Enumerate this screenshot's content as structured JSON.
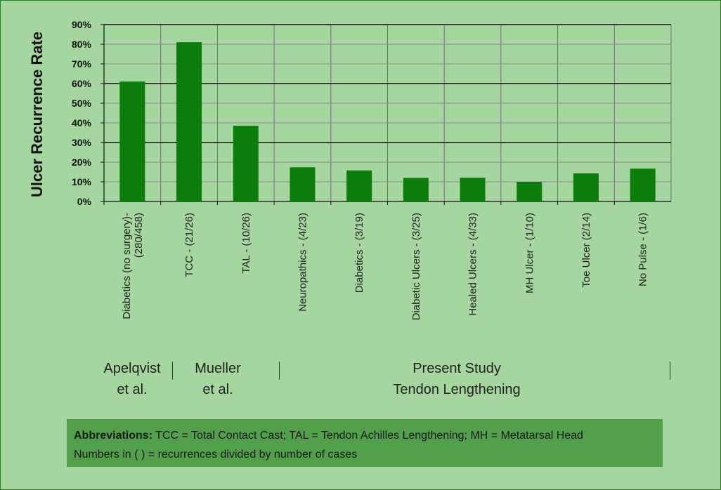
{
  "chart_data": {
    "type": "bar",
    "ylabel": "Ulcer Recurrence Rate",
    "ylim": [
      0,
      90
    ],
    "yticks": [
      "0%",
      "10%",
      "20%",
      "30%",
      "40%",
      "50%",
      "60%",
      "70%",
      "80%",
      "90%"
    ],
    "categories": [
      [
        "Diabetics (no surgery)-",
        "(280/458)"
      ],
      [
        "TCC - (21/26)"
      ],
      [
        "TAL - (10/26)"
      ],
      [
        "Neuropathics - (4/23)"
      ],
      [
        "Diabetics - (3/19)"
      ],
      [
        "Diabetic Ulcers - (3/25)"
      ],
      [
        "Healed Ulcers - (4/33)"
      ],
      [
        "MH Ulcer - (1/10)"
      ],
      [
        "Toe Ulcer (2/14)"
      ],
      [
        "No Pulse - (1/6)"
      ]
    ],
    "values": [
      61,
      81,
      38.5,
      17.4,
      15.8,
      12,
      12.1,
      10,
      14.3,
      16.7
    ],
    "bar_color": "#0a7d0a",
    "groups": [
      {
        "lines": [
          "Apelqvist",
          "et al."
        ]
      },
      {
        "lines": [
          "Mueller",
          "et al."
        ]
      },
      {
        "lines": [
          "Present Study",
          "Tendon Lengthening"
        ]
      }
    ]
  },
  "abbreviations": {
    "label": "Abbreviations:",
    "text": " TCC = Total Contact Cast; TAL = Tendon Achilles Lengthening; MH = Metatarsal Head",
    "line2": "Numbers in ( ) = recurrences divided by number of cases"
  }
}
